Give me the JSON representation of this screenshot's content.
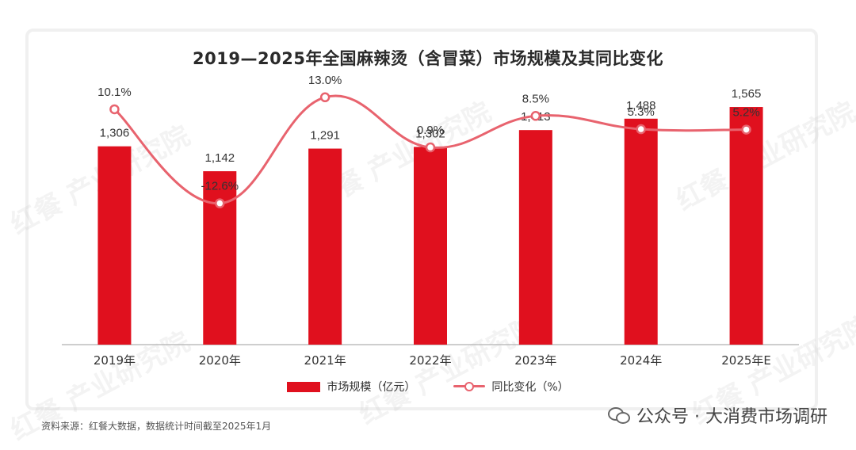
{
  "page": {
    "title": "2019—2025年全国麻辣烫（含冒菜）市场规模及其同比变化",
    "source": "资料来源：红餐大数据，数据统计时间截至2025年1月",
    "wechat_label": "公众号 · 大消费市场调研",
    "watermark": "红餐 产业研究院"
  },
  "colors": {
    "bar": "#e0101e",
    "line": "#e8636e"
  },
  "chart_data": {
    "type": "bar",
    "title": "2019—2025年全国麻辣烫（含冒菜）市场规模及其同比变化",
    "categories": [
      "2019年",
      "2020年",
      "2021年",
      "2022年",
      "2023年",
      "2024年",
      "2025年E"
    ],
    "series": [
      {
        "name": "市场规模（亿元）",
        "type": "bar",
        "values": [
          1306,
          1142,
          1291,
          1302,
          1413,
          1488,
          1565
        ]
      },
      {
        "name": "同比变化（%）",
        "type": "line",
        "values": [
          10.1,
          -12.6,
          13.0,
          0.9,
          8.5,
          5.3,
          5.2
        ]
      }
    ],
    "bar_labels": [
      "1,306",
      "1,142",
      "1,291",
      "1,302",
      "1,413",
      "1,488",
      "1,565"
    ],
    "line_labels": [
      "10.1%",
      "-12.6%",
      "13.0%",
      "0.9%",
      "8.5%",
      "5.3%",
      "5.2%"
    ],
    "ylim": [
      0,
      1800
    ],
    "y2lim": [
      -40,
      25
    ],
    "legend_position": "bottom",
    "grid": false
  }
}
